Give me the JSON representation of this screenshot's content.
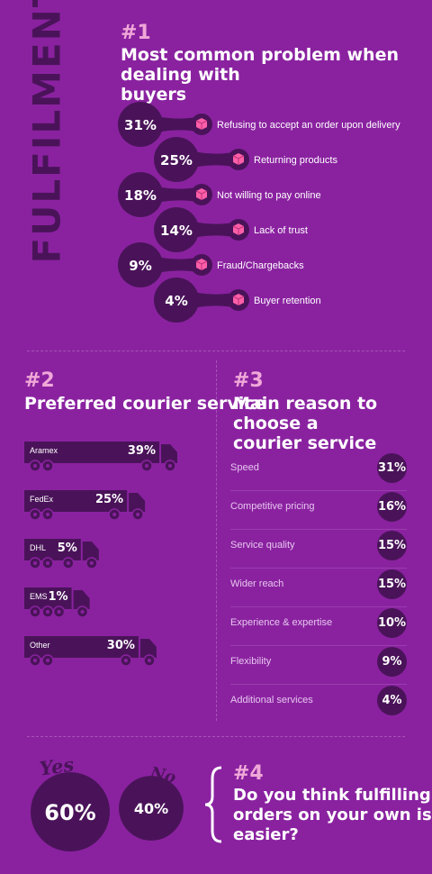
{
  "vertical_title": "FULFILMENT",
  "colors": {
    "background": "#8a22a0",
    "dark": "#4a1359",
    "accent": "#f0a8d8",
    "icon_pink": "#ff5fa8"
  },
  "section1": {
    "number": "#1",
    "title_line1": "Most common problem when dealing with",
    "title_line2": "buyers"
  },
  "section2": {
    "number": "#2",
    "title": "Preferred courier service"
  },
  "section3": {
    "number": "#3",
    "title_line1": "Main reason to choose a",
    "title_line2": "courier service"
  },
  "section4": {
    "number": "#4",
    "question_line1": "Do you think fulfilling",
    "question_line2": "orders on your own is",
    "question_line3": "easier?"
  },
  "chart_data": [
    {
      "type": "bar",
      "title": "Most common problem when dealing with buyers",
      "categories": [
        "Refusing to accept an order upon delivery",
        "Returning products",
        "Not willing to pay online",
        "Lack of trust",
        "Fraud/Chargebacks",
        "Buyer retention"
      ],
      "values": [
        31,
        25,
        18,
        14,
        9,
        4
      ],
      "labels": [
        "31%",
        "25%",
        "18%",
        "14%",
        "9%",
        "4%"
      ],
      "icon": "box-icon"
    },
    {
      "type": "bar",
      "title": "Preferred courier service",
      "categories": [
        "Aramex",
        "FedEx",
        "DHL",
        "EMS",
        "Other"
      ],
      "values": [
        39,
        25,
        5,
        1,
        30
      ],
      "labels": [
        "39%",
        "25%",
        "5%",
        "1%",
        "30%"
      ],
      "icon": "truck-icon"
    },
    {
      "type": "table",
      "title": "Main reason to choose a courier service",
      "categories": [
        "Speed",
        "Competitive pricing",
        "Service quality",
        "Wider reach",
        "Experience & expertise",
        "Flexibility",
        "Additional services"
      ],
      "values": [
        31,
        16,
        15,
        15,
        10,
        9,
        4
      ],
      "labels": [
        "31%",
        "16%",
        "15%",
        "15%",
        "10%",
        "9%",
        "4%"
      ]
    },
    {
      "type": "pie",
      "title": "Do you think fulfilling orders on your own is easier?",
      "categories": [
        "Yes",
        "No"
      ],
      "values": [
        60,
        40
      ],
      "labels": [
        "60%",
        "40%"
      ]
    }
  ]
}
